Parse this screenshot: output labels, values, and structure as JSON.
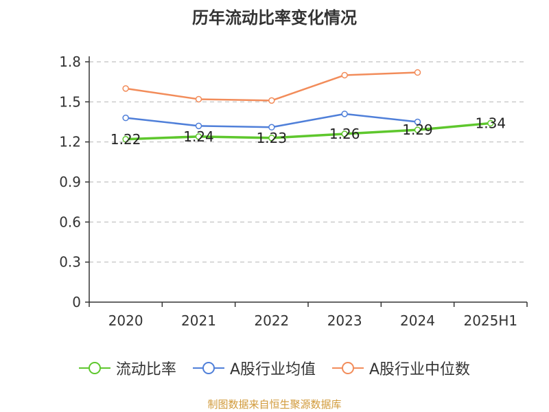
{
  "title": "历年流动比率变化情况",
  "source_text": "制图数据来自恒生聚源数据库",
  "chart_data": {
    "type": "line",
    "categories": [
      "2020",
      "2021",
      "2022",
      "2023",
      "2024",
      "2025H1"
    ],
    "ylim": [
      0,
      1.8
    ],
    "yticks": [
      "0",
      "0.3",
      "0.6",
      "0.9",
      "1.2",
      "1.5",
      "1.8"
    ],
    "grid": true,
    "legend_position": "bottom",
    "series": [
      {
        "name": "流动比率",
        "color": "#5ec72d",
        "values": [
          1.22,
          1.24,
          1.23,
          1.26,
          1.29,
          1.34
        ],
        "labels": [
          "1.22",
          "1.24",
          "1.23",
          "1.26",
          "1.29",
          "1.34"
        ]
      },
      {
        "name": "A股行业均值",
        "color": "#4f7fd9",
        "values": [
          1.38,
          1.32,
          1.31,
          1.41,
          1.35,
          null
        ]
      },
      {
        "name": "A股行业中位数",
        "color": "#f28c5a",
        "values": [
          1.6,
          1.52,
          1.51,
          1.7,
          1.72,
          null
        ]
      }
    ]
  }
}
